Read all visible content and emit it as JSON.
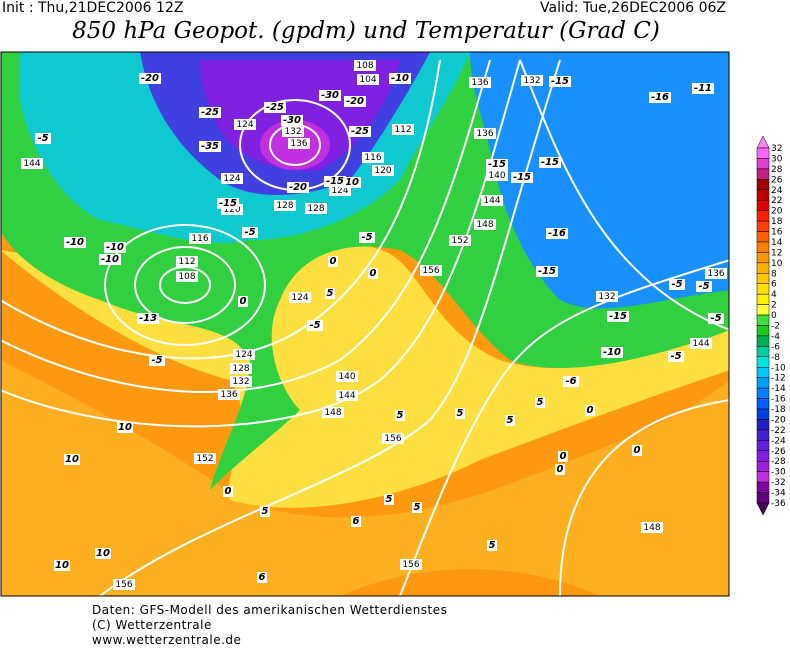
{
  "header": {
    "init": "Init : Thu,21DEC2006 12Z",
    "valid": "Valid: Tue,26DEC2006 06Z",
    "title": "850 hPa Geopot. (gpdm) und Temperatur (Grad C)"
  },
  "geopotential_labels": [
    108,
    104,
    124,
    132,
    136,
    112,
    116,
    120,
    124,
    128,
    128,
    124,
    120,
    116,
    112,
    108,
    124,
    124,
    128,
    132,
    136,
    140,
    144,
    148,
    152,
    156,
    152,
    156,
    144,
    148,
    140,
    136,
    136,
    132,
    136,
    132,
    144,
    148,
    156,
    156,
    144
  ],
  "temperature_labels": [
    -20,
    -25,
    -35,
    -5,
    -10,
    -10,
    -10,
    -15,
    -5,
    -13,
    -5,
    0,
    -5,
    5,
    0,
    -5,
    -10,
    -15,
    -20,
    -30,
    -20,
    -25,
    -25,
    -30,
    -10,
    -15,
    -16,
    -11,
    -15,
    -15,
    -15,
    -16,
    -15,
    -5,
    -5,
    -5,
    -15,
    -10,
    -5,
    -6,
    0,
    5,
    5,
    10,
    10,
    10,
    10,
    0,
    5,
    6,
    5,
    5,
    6,
    5,
    0,
    0,
    0,
    0,
    5,
    5
  ],
  "colorbar": {
    "labels": [
      32,
      30,
      28,
      26,
      24,
      22,
      20,
      18,
      16,
      14,
      12,
      10,
      8,
      6,
      4,
      2,
      0,
      -2,
      -4,
      -6,
      -8,
      -10,
      -12,
      -14,
      -16,
      -18,
      -20,
      -22,
      -24,
      -26,
      -28,
      -30,
      -32,
      -34,
      -36
    ],
    "colors": [
      "#ff66ff",
      "#e040d0",
      "#c02080",
      "#a00000",
      "#c00000",
      "#e00000",
      "#ff2000",
      "#ff4000",
      "#ff6000",
      "#ff8000",
      "#ff9800",
      "#ffb000",
      "#ffc800",
      "#ffe000",
      "#fff000",
      "#ffff40",
      "#40e040",
      "#20c820",
      "#00b050",
      "#00d0a0",
      "#00e8e0",
      "#00c8ff",
      "#00a0ff",
      "#0080ff",
      "#0060ff",
      "#0040e0",
      "#2020c0",
      "#4020d0",
      "#6020e0",
      "#8020e0",
      "#a020e0",
      "#c030e0",
      "#8000a0",
      "#600080"
    ]
  },
  "footer": [
    "Daten: GFS-Modell des amerikanischen Wetterdienstes",
    "(C) Wetterzentrale",
    "www.wetterzentrale.de"
  ]
}
